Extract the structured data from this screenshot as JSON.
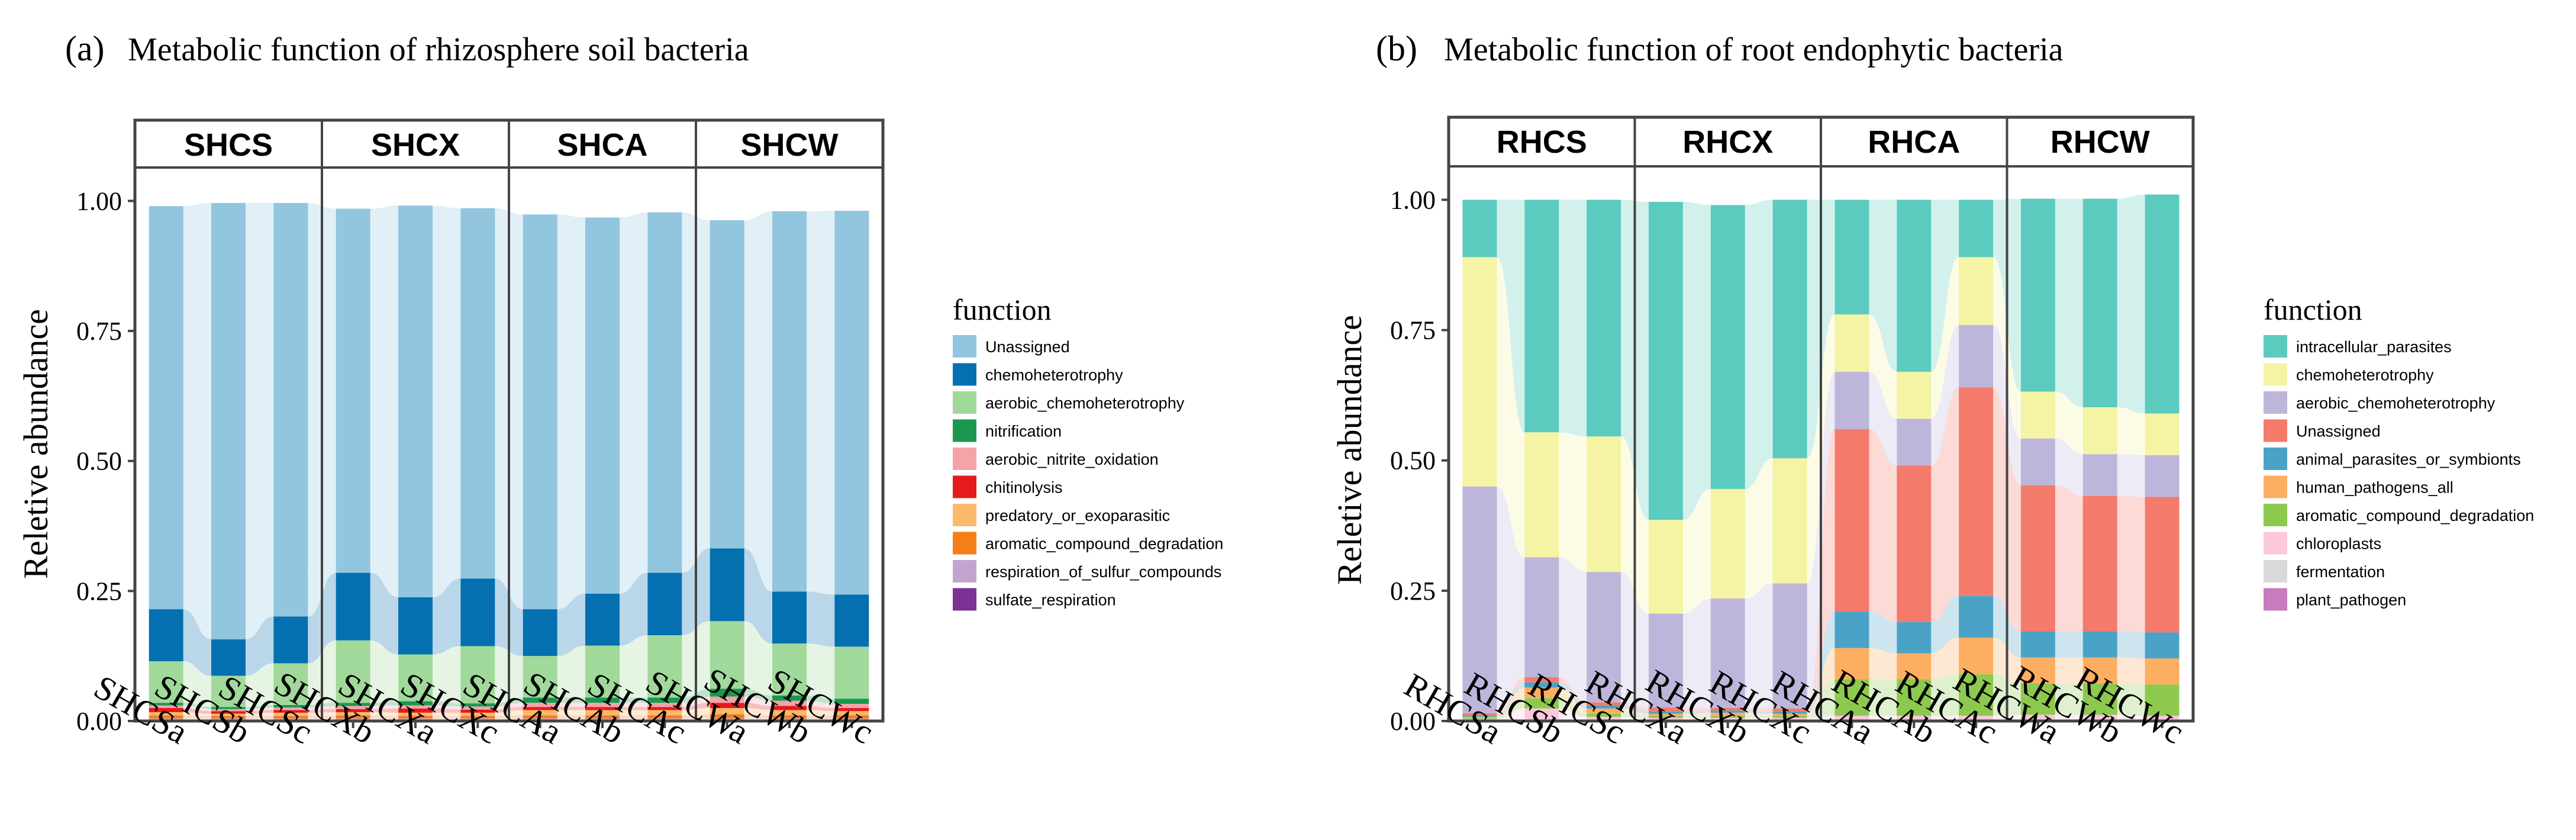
{
  "chart_data": [
    {
      "type": "area",
      "panel_letter": "(a)",
      "title": "Metabolic function of rhizosphere soil bacteria",
      "ylabel": "Reletive abundance",
      "xlabel": "",
      "ylim": [
        0,
        1
      ],
      "yticks": [
        "0.00",
        "0.25",
        "0.50",
        "0.75",
        "1.00"
      ],
      "facets": [
        "SHCS",
        "SHCX",
        "SHCA",
        "SHCW"
      ],
      "categories": [
        "SHCSa",
        "SHCSb",
        "SHCSc",
        "SHCXb",
        "SHCXa",
        "SHCXc",
        "SHCAa",
        "SHCAb",
        "SHCAc",
        "SHCWa",
        "SHCWb",
        "SHCWc"
      ],
      "legend_title": "function",
      "legend_position": "right",
      "series": [
        {
          "name": "sulfate_respiration",
          "color": "#7b3294",
          "values": [
            0.002,
            0.002,
            0.002,
            0.002,
            0.002,
            0.002,
            0.002,
            0.002,
            0.002,
            0.002,
            0.002,
            0.002
          ]
        },
        {
          "name": "respiration_of_sulfur_compounds",
          "color": "#c2a5cf",
          "values": [
            0.003,
            0.003,
            0.003,
            0.003,
            0.003,
            0.003,
            0.003,
            0.003,
            0.003,
            0.003,
            0.003,
            0.003
          ]
        },
        {
          "name": "aromatic_compound_degradation",
          "color": "#f57f17",
          "values": [
            0.006,
            0.005,
            0.005,
            0.006,
            0.005,
            0.005,
            0.006,
            0.006,
            0.006,
            0.008,
            0.006,
            0.006
          ]
        },
        {
          "name": "predatory_or_exoparasitic",
          "color": "#fdb96b",
          "values": [
            0.006,
            0.004,
            0.006,
            0.006,
            0.006,
            0.006,
            0.01,
            0.01,
            0.01,
            0.012,
            0.01,
            0.008
          ]
        },
        {
          "name": "chitinolysis",
          "color": "#e41a1c",
          "values": [
            0.008,
            0.005,
            0.005,
            0.006,
            0.008,
            0.006,
            0.006,
            0.006,
            0.006,
            0.01,
            0.008,
            0.006
          ]
        },
        {
          "name": "aerobic_nitrite_oxidation",
          "color": "#f4a3a8",
          "values": [
            0.005,
            0.004,
            0.005,
            0.006,
            0.006,
            0.006,
            0.008,
            0.008,
            0.008,
            0.012,
            0.01,
            0.008
          ]
        },
        {
          "name": "nitrification",
          "color": "#1a9850",
          "values": [
            0.005,
            0.004,
            0.005,
            0.006,
            0.008,
            0.006,
            0.01,
            0.01,
            0.01,
            0.015,
            0.01,
            0.01
          ]
        },
        {
          "name": "aerobic_chemoheterotrophy",
          "color": "#a1d99b",
          "values": [
            0.08,
            0.06,
            0.08,
            0.12,
            0.09,
            0.11,
            0.08,
            0.1,
            0.12,
            0.13,
            0.1,
            0.1
          ]
        },
        {
          "name": "chemoheterotrophy",
          "color": "#0570b0",
          "values": [
            0.1,
            0.07,
            0.09,
            0.13,
            0.11,
            0.13,
            0.09,
            0.1,
            0.12,
            0.14,
            0.1,
            0.1
          ]
        },
        {
          "name": "Unassigned",
          "color": "#92c5de",
          "values": [
            0.775,
            0.839,
            0.795,
            0.7,
            0.753,
            0.712,
            0.759,
            0.723,
            0.693,
            0.631,
            0.731,
            0.738
          ]
        }
      ],
      "legend_order": [
        "Unassigned",
        "chemoheterotrophy",
        "aerobic_chemoheterotrophy",
        "nitrification",
        "aerobic_nitrite_oxidation",
        "chitinolysis",
        "predatory_or_exoparasitic",
        "aromatic_compound_degradation",
        "respiration_of_sulfur_compounds",
        "sulfate_respiration"
      ]
    },
    {
      "type": "area",
      "panel_letter": "(b)",
      "title": "Metabolic function of root endophytic bacteria",
      "ylabel": "Reletive abundance",
      "xlabel": "",
      "ylim": [
        0,
        1
      ],
      "yticks": [
        "0.00",
        "0.25",
        "0.50",
        "0.75",
        "1.00"
      ],
      "facets": [
        "RHCS",
        "RHCX",
        "RHCA",
        "RHCW"
      ],
      "categories": [
        "RHCSa",
        "RHCSb",
        "RHCSc",
        "RHCXa",
        "RHCXb",
        "RHCXc",
        "RHCAa",
        "RHCAb",
        "RHCAc",
        "RHCWa",
        "RHCWb",
        "RHCWc"
      ],
      "legend_title": "function",
      "legend_position": "right",
      "series": [
        {
          "name": "plant_pathogen",
          "color": "#c77cbf",
          "values": [
            0.001,
            0.002,
            0.001,
            0.001,
            0.001,
            0.001,
            0.002,
            0.002,
            0.002,
            0.002,
            0.002,
            0.002
          ]
        },
        {
          "name": "fermentation",
          "color": "#d9d9d9",
          "values": [
            0.001,
            0.002,
            0.001,
            0.001,
            0.001,
            0.001,
            0.002,
            0.002,
            0.002,
            0.002,
            0.002,
            0.002
          ]
        },
        {
          "name": "chloroplasts",
          "color": "#fbc8dc",
          "values": [
            0.002,
            0.02,
            0.006,
            0.004,
            0.004,
            0.004,
            0.006,
            0.006,
            0.006,
            0.008,
            0.008,
            0.006
          ]
        },
        {
          "name": "aromatic_compound_degradation",
          "color": "#8dc94e",
          "values": [
            0.002,
            0.02,
            0.006,
            0.004,
            0.004,
            0.004,
            0.07,
            0.07,
            0.08,
            0.06,
            0.06,
            0.06
          ]
        },
        {
          "name": "human_pathogens_all",
          "color": "#fdae61",
          "values": [
            0.002,
            0.02,
            0.01,
            0.004,
            0.006,
            0.004,
            0.06,
            0.05,
            0.07,
            0.05,
            0.05,
            0.05
          ]
        },
        {
          "name": "animal_parasites_or_symbionts",
          "color": "#4aa3c7",
          "values": [
            0.002,
            0.01,
            0.006,
            0.004,
            0.004,
            0.004,
            0.07,
            0.06,
            0.08,
            0.05,
            0.05,
            0.05
          ]
        },
        {
          "name": "Unassigned",
          "color": "#f47a6c",
          "values": [
            0.005,
            0.01,
            0.006,
            0.008,
            0.005,
            0.006,
            0.35,
            0.3,
            0.4,
            0.28,
            0.26,
            0.26
          ]
        },
        {
          "name": "aerobic_chemoheterotrophy",
          "color": "#bdb6da",
          "values": [
            0.435,
            0.23,
            0.25,
            0.18,
            0.21,
            0.24,
            0.11,
            0.09,
            0.12,
            0.09,
            0.08,
            0.08
          ]
        },
        {
          "name": "chemoheterotrophy",
          "color": "#f5f3a4",
          "values": [
            0.44,
            0.24,
            0.26,
            0.18,
            0.21,
            0.24,
            0.11,
            0.09,
            0.13,
            0.09,
            0.09,
            0.08
          ]
        },
        {
          "name": "intracellular_parasites",
          "color": "#5ccbbf",
          "values": [
            0.11,
            0.446,
            0.454,
            0.61,
            0.545,
            0.496,
            0.22,
            0.33,
            0.11,
            0.37,
            0.4,
            0.42
          ]
        }
      ],
      "legend_order": [
        "intracellular_parasites",
        "chemoheterotrophy",
        "aerobic_chemoheterotrophy",
        "Unassigned",
        "animal_parasites_or_symbionts",
        "human_pathogens_all",
        "aromatic_compound_degradation",
        "chloroplasts",
        "fermentation",
        "plant_pathogen"
      ]
    }
  ]
}
